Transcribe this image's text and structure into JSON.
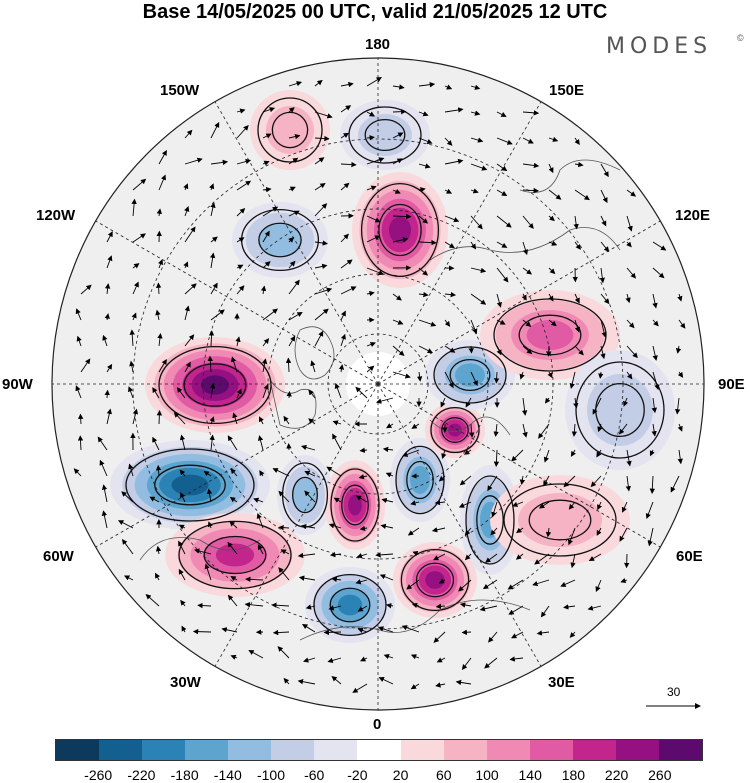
{
  "title": "Base 14/05/2025 00 UTC, valid 21/05/2025 12 UTC",
  "brand": "MODES",
  "brand_mark": "©",
  "longitude_labels": {
    "lon_180": "180",
    "lon_150w": "150W",
    "lon_150e": "150E",
    "lon_120w": "120W",
    "lon_120e": "120E",
    "lon_90w": "90W",
    "lon_90e": "90E",
    "lon_60w": "60W",
    "lon_60e": "60E",
    "lon_30w": "30W",
    "lon_30e": "30E",
    "lon_0": "0"
  },
  "vector_scale": {
    "label": "30"
  },
  "colorbar": {
    "ticks": [
      "-260",
      "-220",
      "-180",
      "-140",
      "-100",
      "-60",
      "-20",
      "20",
      "60",
      "100",
      "140",
      "180",
      "220",
      "260"
    ],
    "colors": [
      "#0d3a5c",
      "#135f8f",
      "#2b82b5",
      "#5da5cf",
      "#92bde0",
      "#c3cde6",
      "#e4e3f0",
      "#ffffff",
      "#f9d9dc",
      "#f5b3c4",
      "#f08ab5",
      "#e05aa4",
      "#c2258c",
      "#951080",
      "#5c0a6e"
    ]
  },
  "anomaly_centers": [
    {
      "id": "pos-pacific-north",
      "sign": "+",
      "level": 220
    },
    {
      "id": "neg-north-pacific",
      "sign": "-",
      "level": 60
    },
    {
      "id": "neg-alaska",
      "sign": "-",
      "level": 100
    },
    {
      "id": "pos-gulf-alaska",
      "sign": "+",
      "level": 60
    },
    {
      "id": "pos-canada",
      "sign": "+",
      "level": 260
    },
    {
      "id": "neg-labrador",
      "sign": "-",
      "level": 220
    },
    {
      "id": "pos-atlantic",
      "sign": "+",
      "level": 180
    },
    {
      "id": "neg-greenland",
      "sign": "-",
      "level": 100
    },
    {
      "id": "pos-greenland",
      "sign": "+",
      "level": 220
    },
    {
      "id": "neg-iceland",
      "sign": "-",
      "level": 180
    },
    {
      "id": "neg-europe",
      "sign": "-",
      "level": 140
    },
    {
      "id": "pos-scandinavia",
      "sign": "+",
      "level": 220
    },
    {
      "id": "neg-kara",
      "sign": "-",
      "level": 140
    },
    {
      "id": "pos-barents",
      "sign": "+",
      "level": 220
    },
    {
      "id": "neg-siberia",
      "sign": "-",
      "level": 140
    },
    {
      "id": "pos-siberia",
      "sign": "+",
      "level": 140
    },
    {
      "id": "neg-asia",
      "sign": "-",
      "level": 60
    },
    {
      "id": "pos-china",
      "sign": "+",
      "level": 60
    }
  ]
}
